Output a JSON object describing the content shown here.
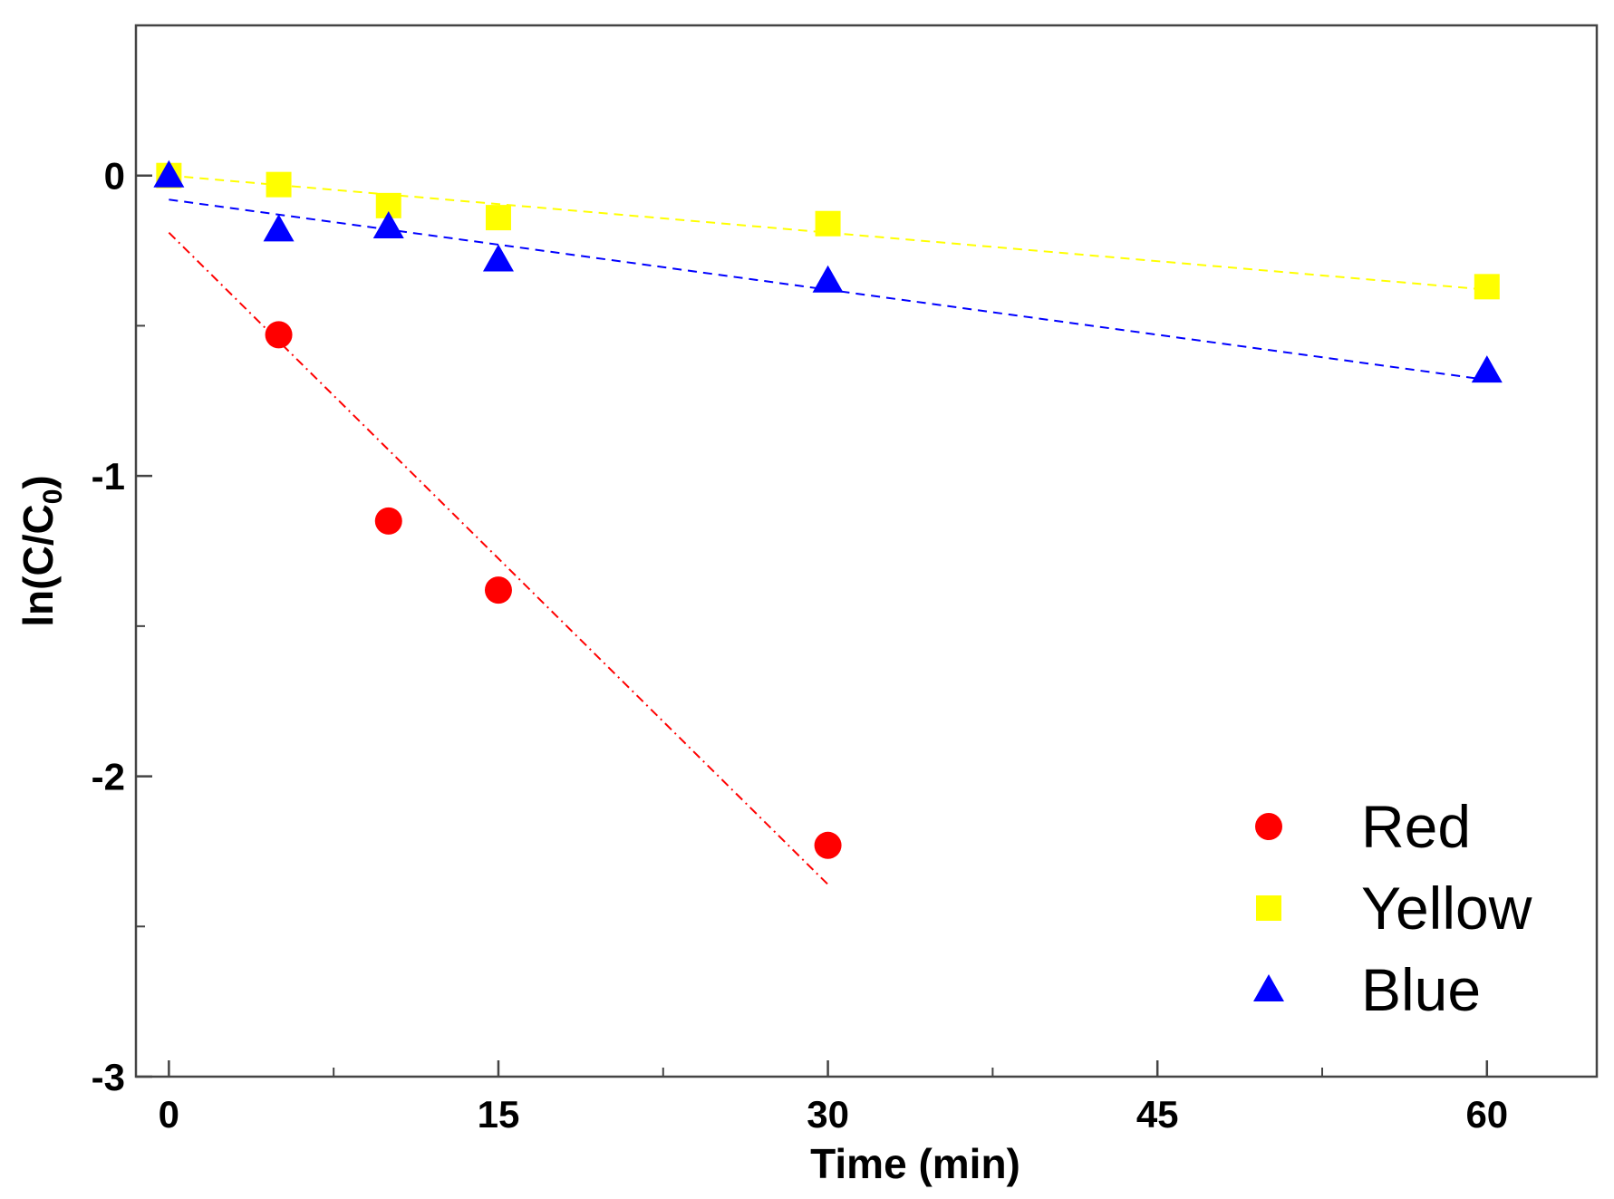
{
  "chart_data": {
    "type": "scatter",
    "title": "",
    "xlabel": "Time (min)",
    "ylabel_main": "ln(C/C",
    "ylabel_sub": "0",
    "ylabel_close": ")",
    "xlim": [
      -1.5,
      65
    ],
    "ylim": [
      -3,
      0.5
    ],
    "xticks": [
      0,
      15,
      30,
      45,
      60
    ],
    "xticks_minor": [
      7.5,
      22.5,
      37.5,
      52.5
    ],
    "yticks": [
      0,
      -1,
      -2,
      -3
    ],
    "yticks_minor": [
      -0.5,
      -1.5,
      -2.5
    ],
    "legend_position": "bottom-right",
    "series": [
      {
        "name": "Red",
        "color": "#ff0000",
        "marker": "circle",
        "x": [
          5,
          10,
          15,
          30
        ],
        "y": [
          -0.53,
          -1.15,
          -1.38,
          -2.23
        ],
        "fit": {
          "x": [
            0,
            30
          ],
          "y": [
            -0.19,
            -2.36
          ],
          "style": "dash-dot"
        }
      },
      {
        "name": "Yellow",
        "color": "#ffff00",
        "marker": "square",
        "x": [
          0,
          5,
          10,
          15,
          30,
          60
        ],
        "y": [
          0.0,
          -0.03,
          -0.1,
          -0.14,
          -0.16,
          -0.37
        ],
        "fit": {
          "x": [
            0,
            60
          ],
          "y": [
            0.0,
            -0.38
          ],
          "style": "dash"
        }
      },
      {
        "name": "Blue",
        "color": "#0000ff",
        "marker": "triangle",
        "x": [
          0,
          5,
          10,
          15,
          30,
          60
        ],
        "y": [
          0.0,
          -0.18,
          -0.17,
          -0.28,
          -0.35,
          -0.65
        ],
        "fit": {
          "x": [
            0,
            60
          ],
          "y": [
            -0.08,
            -0.68
          ],
          "style": "dash"
        }
      }
    ]
  }
}
